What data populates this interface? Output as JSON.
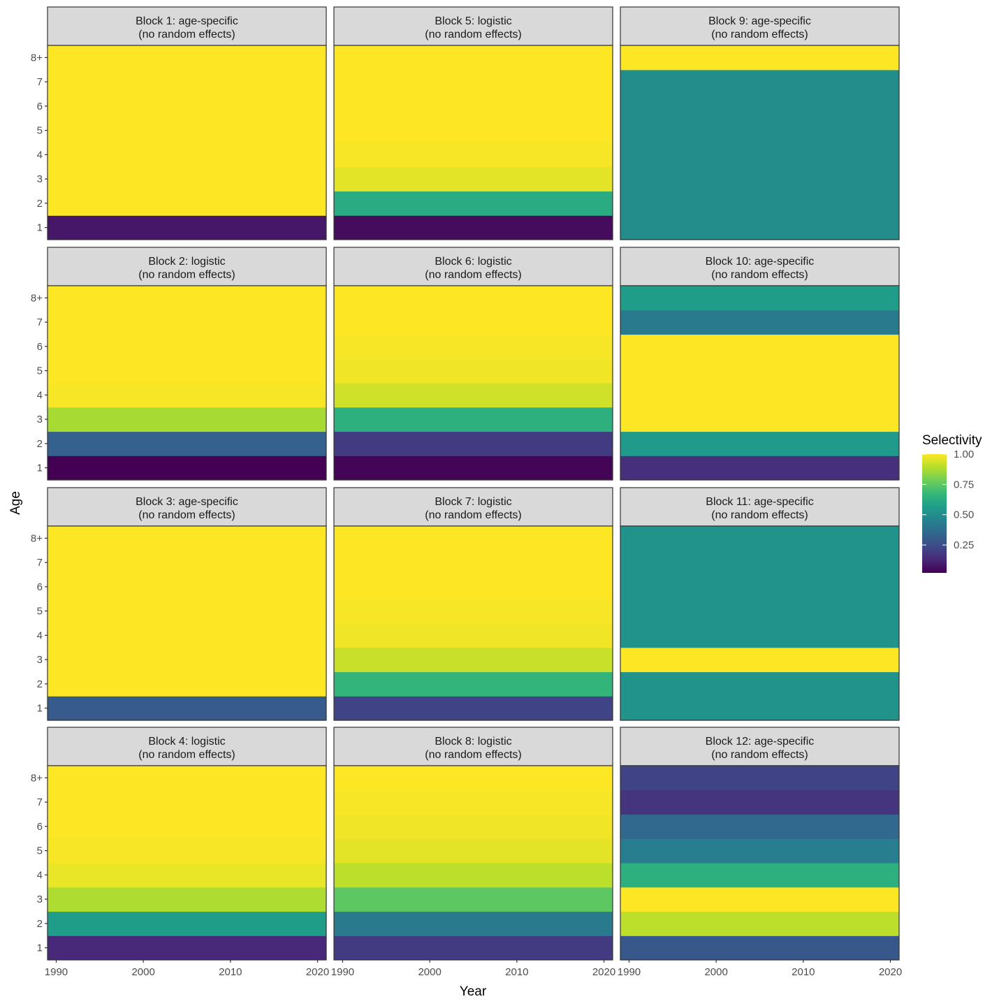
{
  "chart_data": {
    "type": "heatmap",
    "xlabel": "Year",
    "ylabel": "Age",
    "x_ticks": [
      1990,
      2000,
      2010,
      2020
    ],
    "xlim": [
      1989,
      2021
    ],
    "age_labels": [
      "1",
      "2",
      "3",
      "4",
      "5",
      "6",
      "7",
      "8+"
    ],
    "legend": {
      "title": "Selectivity",
      "ticks": [
        "1.00",
        "0.75",
        "0.50",
        "0.25"
      ],
      "tick_values": [
        1.0,
        0.75,
        0.5,
        0.25
      ],
      "range": [
        0.02,
        1.0
      ],
      "colormap": "viridis",
      "position": "right"
    },
    "panels": [
      {
        "title_line1": "Block 1: age-specific",
        "title_line2": "(no random effects)",
        "values": [
          0.08,
          1.0,
          1.0,
          1.0,
          1.0,
          1.0,
          1.0,
          1.0
        ]
      },
      {
        "title_line1": "Block 5: logistic",
        "title_line2": "(no random effects)",
        "values": [
          0.05,
          0.62,
          0.96,
          0.99,
          1.0,
          1.0,
          1.0,
          1.0
        ]
      },
      {
        "title_line1": "Block 9: age-specific",
        "title_line2": "(no random effects)",
        "values": [
          0.5,
          0.5,
          0.5,
          0.5,
          0.5,
          0.5,
          0.5,
          1.0
        ]
      },
      {
        "title_line1": "Block 2: logistic",
        "title_line2": "(no random effects)",
        "values": [
          0.02,
          0.32,
          0.87,
          0.99,
          1.0,
          1.0,
          1.0,
          1.0
        ]
      },
      {
        "title_line1": "Block 6: logistic",
        "title_line2": "(no random effects)",
        "values": [
          0.03,
          0.19,
          0.64,
          0.93,
          0.98,
          0.99,
          1.0,
          1.0
        ]
      },
      {
        "title_line1": "Block 10: age-specific",
        "title_line2": "(no random effects)",
        "values": [
          0.15,
          0.55,
          1.0,
          1.0,
          1.0,
          1.0,
          0.42,
          0.56
        ]
      },
      {
        "title_line1": "Block 3: age-specific",
        "title_line2": "(no random effects)",
        "values": [
          0.3,
          1.0,
          1.0,
          1.0,
          1.0,
          1.0,
          1.0,
          1.0
        ]
      },
      {
        "title_line1": "Block 7: logistic",
        "title_line2": "(no random effects)",
        "values": [
          0.22,
          0.66,
          0.92,
          0.98,
          0.99,
          1.0,
          1.0,
          1.0
        ]
      },
      {
        "title_line1": "Block 11: age-specific",
        "title_line2": "(no random effects)",
        "values": [
          0.52,
          0.52,
          1.0,
          0.52,
          0.52,
          0.52,
          0.52,
          0.52
        ]
      },
      {
        "title_line1": "Block 4: logistic",
        "title_line2": "(no random effects)",
        "values": [
          0.13,
          0.56,
          0.88,
          0.97,
          0.99,
          1.0,
          1.0,
          1.0
        ]
      },
      {
        "title_line1": "Block 8: logistic",
        "title_line2": "(no random effects)",
        "values": [
          0.19,
          0.42,
          0.75,
          0.9,
          0.96,
          0.98,
          0.99,
          1.0
        ]
      },
      {
        "title_line1": "Block 12: age-specific",
        "title_line2": "(no random effects)",
        "values": [
          0.29,
          0.9,
          1.0,
          0.64,
          0.44,
          0.35,
          0.17,
          0.22
        ]
      }
    ]
  }
}
